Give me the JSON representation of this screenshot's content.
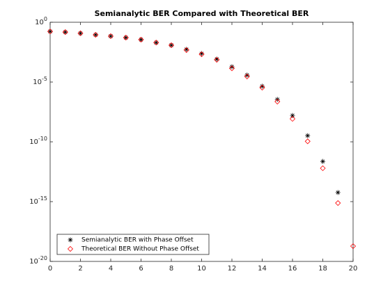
{
  "chart_data": {
    "type": "scatter",
    "title": "Semianalytic BER Compared with Theoretical BER",
    "x": [
      0,
      1,
      2,
      3,
      4,
      5,
      6,
      7,
      8,
      9,
      10,
      11,
      12,
      13,
      14,
      15,
      16,
      17,
      18,
      19,
      20
    ],
    "series": [
      {
        "name": "Semianalytic BER with Phase Offset",
        "color": "#000000",
        "marker": "asterisk",
        "values": [
          0.17,
          0.15,
          0.12,
          0.089,
          0.069,
          0.052,
          0.035,
          0.02,
          0.012,
          0.0054,
          0.0024,
          0.00083,
          0.00019,
          3.8e-05,
          4.5e-06,
          3.5e-07,
          1.6e-08,
          3.3e-10,
          2.3e-12,
          5.8e-15,
          null
        ]
      },
      {
        "name": "Theoretical BER Without Phase Offset",
        "color": "#ff0000",
        "marker": "diamond",
        "values": [
          0.17,
          0.15,
          0.12,
          0.089,
          0.069,
          0.052,
          0.035,
          0.02,
          0.012,
          0.0047,
          0.0021,
          0.00072,
          0.00014,
          2.9e-05,
          3.4e-06,
          2.3e-07,
          8.3e-09,
          1.1e-10,
          6.2e-13,
          7.6e-16,
          1.9e-19
        ]
      }
    ],
    "xlim": [
      0,
      20
    ],
    "xticks": [
      0,
      2,
      4,
      6,
      8,
      10,
      12,
      14,
      16,
      18,
      20
    ],
    "ylim": [
      1e-20,
      1
    ],
    "ylog": true,
    "yticks": [
      {
        "value": 1e-20,
        "label": "10^-20"
      },
      {
        "value": 1e-15,
        "label": "10^-15"
      },
      {
        "value": 1e-10,
        "label": "10^-10"
      },
      {
        "value": 1e-05,
        "label": "10^-5"
      },
      {
        "value": 1,
        "label": "10^0"
      }
    ],
    "legend": "southwest"
  }
}
